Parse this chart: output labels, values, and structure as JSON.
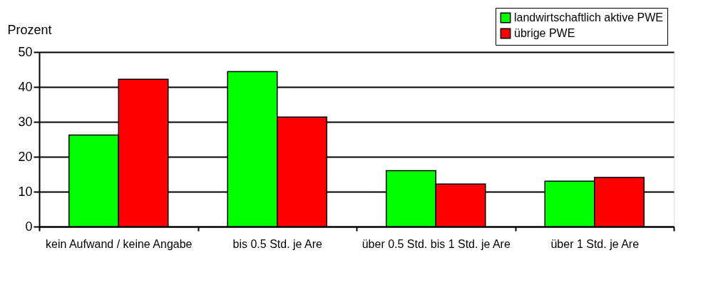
{
  "chart_data": {
    "type": "bar",
    "ylabel": "Prozent",
    "categories": [
      "kein Aufwand / keine Angabe",
      "bis 0.5 Std. je Are",
      "über 0.5 Std. bis 1 Std. je Are",
      "über 1 Std. je Are"
    ],
    "series": [
      {
        "name": "landwirtschaftlich aktive PWE",
        "color": "#00ff00",
        "values": [
          26.2,
          44.4,
          16.0,
          13.0
        ]
      },
      {
        "name": "übrige PWE",
        "color": "#ff0000",
        "values": [
          42.2,
          31.4,
          12.2,
          14.1
        ]
      }
    ],
    "ylim": [
      0,
      50
    ],
    "yticks": [
      0,
      10,
      20,
      30,
      40,
      50
    ],
    "grid": "y",
    "legend": "top right"
  }
}
